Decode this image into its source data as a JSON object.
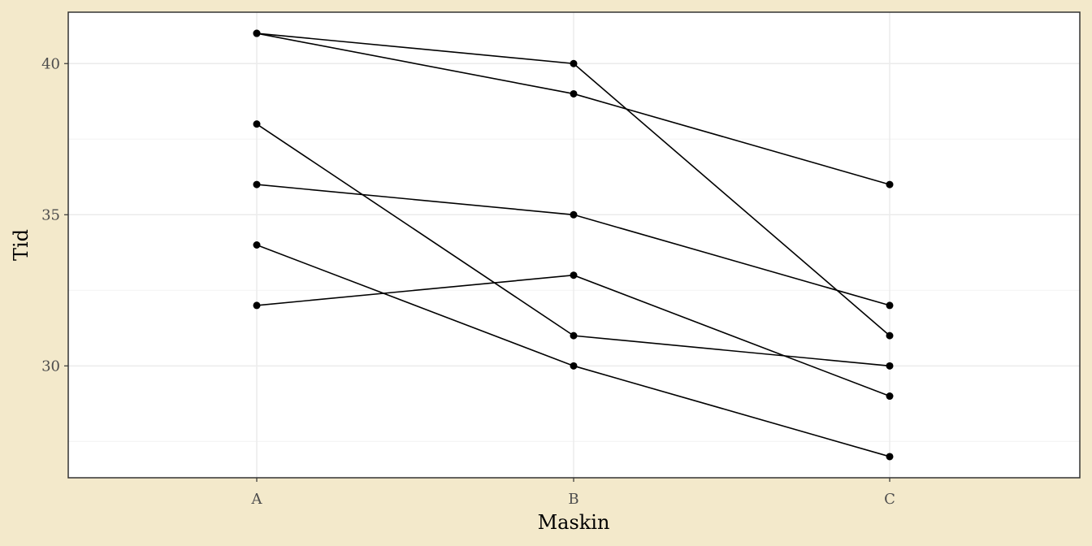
{
  "chart_data": {
    "type": "line",
    "xlabel": "Maskin",
    "ylabel": "Tid",
    "categories": [
      "A",
      "B",
      "C"
    ],
    "ylim": [
      26.3,
      41.7
    ],
    "y_ticks": [
      30,
      35,
      40
    ],
    "grid": true,
    "series": [
      {
        "values": [
          41,
          40,
          31
        ]
      },
      {
        "values": [
          41,
          39,
          36
        ]
      },
      {
        "values": [
          38,
          31,
          30
        ]
      },
      {
        "values": [
          36,
          35,
          32
        ]
      },
      {
        "values": [
          34,
          30,
          27
        ]
      },
      {
        "values": [
          32,
          33,
          29
        ]
      }
    ]
  },
  "colors": {
    "background": "#F3E9CB",
    "panel": "#FFFFFF",
    "panel_border": "#333333",
    "grid_major": "#EBEBEB",
    "grid_minor": "#F5F5F5",
    "line": "#000000",
    "point": "#000000"
  }
}
